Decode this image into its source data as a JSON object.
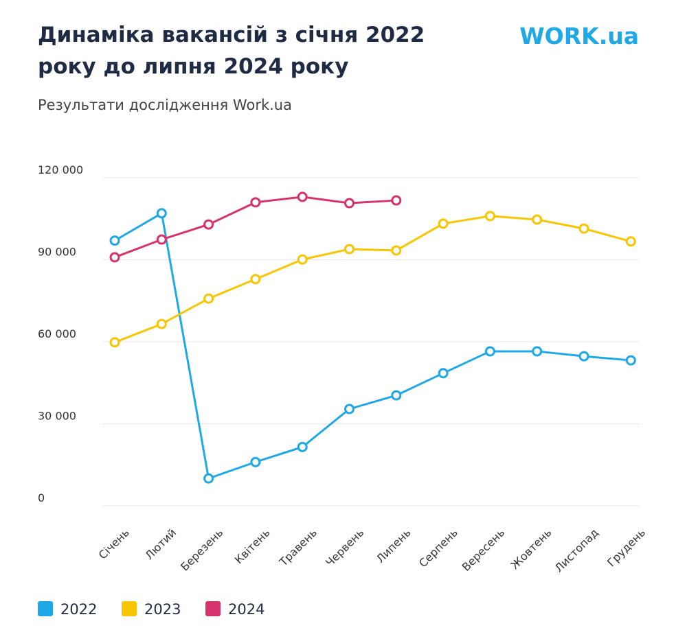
{
  "chart_data": {
    "type": "line",
    "title": "Динаміка вакансій з січня 2022 року до липня 2024 року",
    "subtitle": "Результати дослідження Work.ua",
    "logo": "WORK.ua",
    "categories": [
      "Січень",
      "Лютий",
      "Березень",
      "Квітень",
      "Травень",
      "Червень",
      "Липень",
      "Серпень",
      "Вересень",
      "Жовтень",
      "Листопад",
      "Грудень"
    ],
    "series": [
      {
        "name": "2022",
        "color": "#1ea8e6",
        "values": [
          97000,
          107000,
          10000,
          16000,
          21500,
          35400,
          40400,
          48500,
          56500,
          56500,
          54700,
          53200
        ]
      },
      {
        "name": "2023",
        "color": "#f7c600",
        "values": [
          59800,
          66500,
          75800,
          82900,
          90100,
          93900,
          93400,
          103200,
          106000,
          104700,
          101400,
          96700
        ]
      },
      {
        "name": "2024",
        "color": "#d6336c",
        "values": [
          90900,
          97400,
          102900,
          111000,
          113000,
          110700,
          111700,
          null,
          null,
          null,
          null,
          null
        ]
      }
    ],
    "ylim": [
      0,
      120000
    ],
    "yticks": [
      0,
      {
        "value": 30000,
        "label": "30 000"
      },
      {
        "value": 60000,
        "label": "60 000"
      },
      {
        "value": 90000,
        "label": "90 000"
      },
      {
        "value": 120000,
        "label": "120 000"
      }
    ],
    "grid": true,
    "legend": "bottom"
  }
}
